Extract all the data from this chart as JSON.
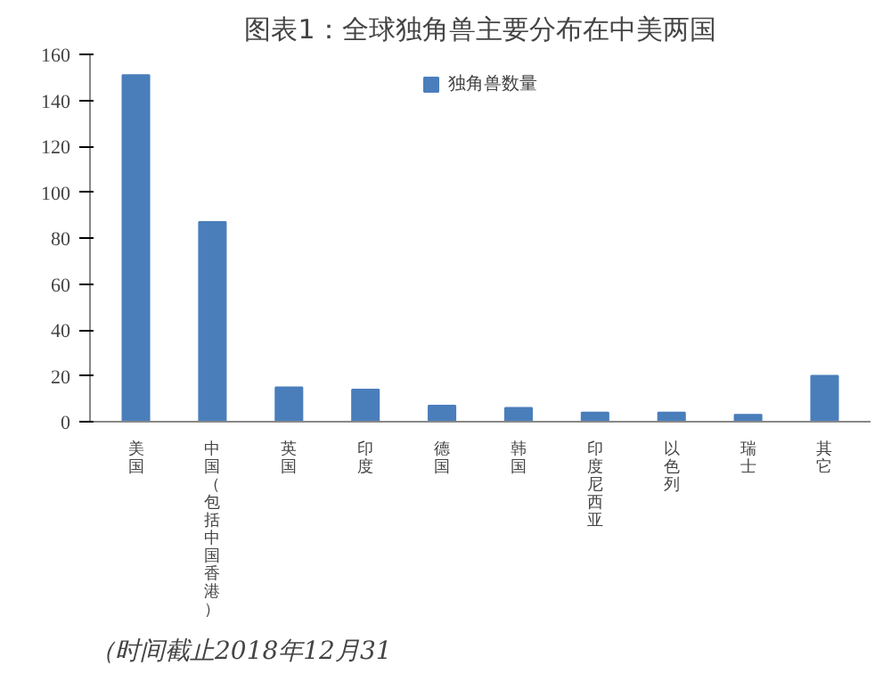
{
  "chart_data": {
    "type": "bar",
    "title": "图表1：全球独角兽主要分布在中美两国",
    "categories": [
      "美国",
      "中国（包括中国香港）",
      "英国",
      "印度",
      "德国",
      "韩国",
      "印度尼西亚",
      "以色列",
      "瑞士",
      "其它"
    ],
    "series": [
      {
        "name": "独角兽数量",
        "color": "#4a7ebb",
        "values": [
          151,
          87,
          15,
          14,
          7,
          6,
          4,
          4,
          3,
          20
        ]
      }
    ],
    "ylim": [
      0,
      160
    ],
    "yticks": [
      0,
      20,
      40,
      60,
      80,
      100,
      120,
      140,
      160
    ],
    "grid": false,
    "legend": "top",
    "annotations": [
      "（时间截止2018年12月31"
    ]
  }
}
